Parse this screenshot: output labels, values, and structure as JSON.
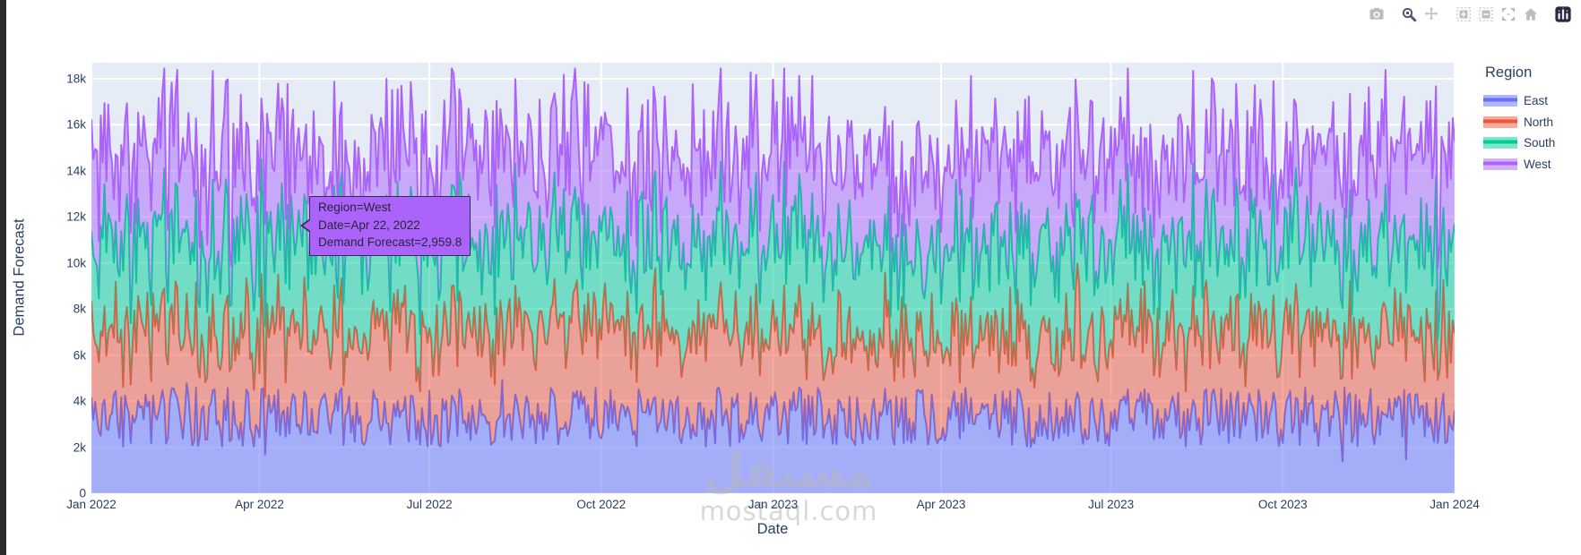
{
  "colors": {
    "east": "#636EFA",
    "north": "#EF553B",
    "south": "#00CC96",
    "west": "#AB63FA",
    "plot_bg": "#E5ECF6",
    "grid": "#FFFFFF",
    "axis_text": "#2A3F5F",
    "tooltip_bg": "#AB63FA",
    "tooltip_border": "#30304D",
    "modebar_icon": "#BCBCC0",
    "modebar_active": "#5D5274",
    "edge_bar": "#2B2B2B"
  },
  "modebar": {
    "buttons": [
      {
        "name": "camera",
        "group": 0,
        "active": false
      },
      {
        "name": "zoom",
        "group": 1,
        "active": true
      },
      {
        "name": "pan",
        "group": 1,
        "active": false
      },
      {
        "name": "zoom-in",
        "group": 2,
        "active": false
      },
      {
        "name": "zoom-out",
        "group": 2,
        "active": false
      },
      {
        "name": "autoscale",
        "group": 2,
        "active": false
      },
      {
        "name": "reset-home",
        "group": 2,
        "active": false
      },
      {
        "name": "plotly-logo",
        "group": 3,
        "active": false
      }
    ]
  },
  "tooltip": {
    "lines": [
      "Region=West",
      "Date=Apr 22, 2022",
      "Demand Forecast=2,959.8"
    ]
  },
  "watermark": {
    "arabic": "مستقل",
    "latin": "mostaql.com"
  },
  "chart_data": {
    "type": "area",
    "stacked": true,
    "title": "",
    "xlabel": "Date",
    "ylabel": "Demand Forecast",
    "legend_title": "Region",
    "legend_position": "right",
    "grid": true,
    "plot_background": "#E5ECF6",
    "x_start": "2022-01-01",
    "x_end": "2024-01-01",
    "points_per_series": 731,
    "ylim": [
      0,
      18700
    ],
    "yticks": [
      "0",
      "2k",
      "4k",
      "6k",
      "8k",
      "10k",
      "12k",
      "14k",
      "16k",
      "18k"
    ],
    "ytick_values": [
      0,
      2000,
      4000,
      6000,
      8000,
      10000,
      12000,
      14000,
      16000,
      18000
    ],
    "xticks": [
      {
        "label": "Jan 2022",
        "day": 0
      },
      {
        "label": "Apr 2022",
        "day": 90
      },
      {
        "label": "Jul 2022",
        "day": 181
      },
      {
        "label": "Oct 2022",
        "day": 273
      },
      {
        "label": "Jan 2023",
        "day": 365
      },
      {
        "label": "Apr 2023",
        "day": 455
      },
      {
        "label": "Jul 2023",
        "day": 546
      },
      {
        "label": "Oct 2023",
        "day": 638
      },
      {
        "label": "Jan 2024",
        "day": 730
      }
    ],
    "series": [
      {
        "name": "East",
        "color": "#636EFA",
        "approx_mean": 3300,
        "noise_half_range": 1300,
        "approx_range": [
          1500,
          5200
        ],
        "seed": 3
      },
      {
        "name": "North",
        "color": "#EF553B",
        "approx_mean": 3700,
        "noise_half_range": 1400,
        "approx_range": [
          1800,
          5700
        ],
        "seed": 17
      },
      {
        "name": "South",
        "color": "#00CC96",
        "approx_mean": 3900,
        "noise_half_range": 1500,
        "approx_range": [
          1900,
          6000
        ],
        "seed": 29
      },
      {
        "name": "West",
        "color": "#AB63FA",
        "approx_mean": 3800,
        "noise_half_range": 1500,
        "approx_range": [
          1800,
          5900
        ],
        "seed": 41
      }
    ],
    "cumulative_band_ranges_note": "stacked tops: East 1.5k-5k, +North 5.5k-9k, +South 9.5k-12.7k, +West 13k-17.8k",
    "hover_point": {
      "series": "West",
      "date": "Apr 22, 2022",
      "value": 2959.8
    }
  },
  "legend": {
    "title": "Region",
    "items": [
      {
        "label": "East",
        "color": "#636EFA"
      },
      {
        "label": "North",
        "color": "#EF553B"
      },
      {
        "label": "South",
        "color": "#00CC96"
      },
      {
        "label": "West",
        "color": "#AB63FA"
      }
    ]
  },
  "yaxis": {
    "title": "Demand Forecast"
  },
  "xaxis": {
    "title": "Date"
  }
}
